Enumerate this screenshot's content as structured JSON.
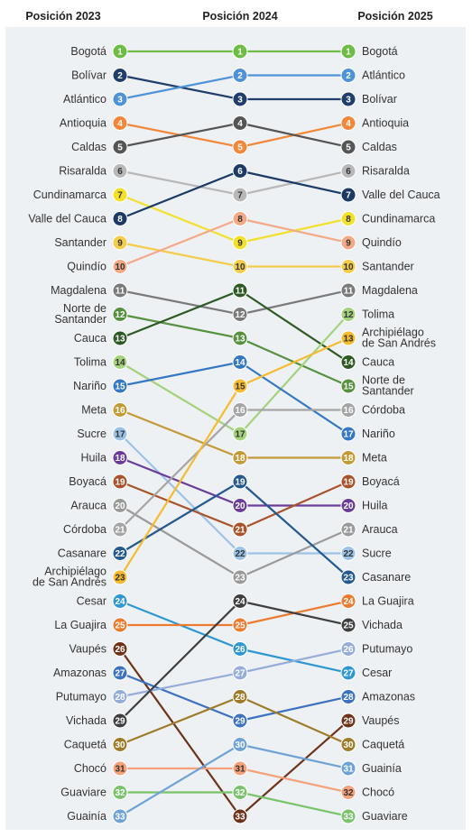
{
  "chart_data": {
    "type": "slope",
    "headers": [
      "Posición 2023",
      "Posición 2024",
      "Posición 2025"
    ],
    "y_axis": "rank",
    "ylim": [
      1,
      33
    ],
    "series": [
      {
        "name": "Bogotá",
        "ranks": [
          1,
          1,
          1
        ],
        "label_2023": [
          "Bogotá"
        ],
        "label_2025": [
          "Bogotá"
        ],
        "color": "#6dbd45"
      },
      {
        "name": "Bolívar",
        "ranks": [
          2,
          3,
          3
        ],
        "label_2023": [
          "Bolívar"
        ],
        "label_2025": [
          "Bolívar"
        ],
        "color": "#1f3e6b"
      },
      {
        "name": "Atlántico",
        "ranks": [
          3,
          2,
          2
        ],
        "label_2023": [
          "Atlántico"
        ],
        "label_2025": [
          "Atlántico"
        ],
        "color": "#4e92d8"
      },
      {
        "name": "Antioquia",
        "ranks": [
          4,
          5,
          4
        ],
        "label_2023": [
          "Antioquia"
        ],
        "label_2025": [
          "Antioquia"
        ],
        "color": "#f2873a"
      },
      {
        "name": "Caldas",
        "ranks": [
          5,
          4,
          5
        ],
        "label_2023": [
          "Caldas"
        ],
        "label_2025": [
          "Caldas"
        ],
        "color": "#555555"
      },
      {
        "name": "Risaralda",
        "ranks": [
          6,
          7,
          6
        ],
        "label_2023": [
          "Risaralda"
        ],
        "label_2025": [
          "Risaralda"
        ],
        "color": "#b8b8b8"
      },
      {
        "name": "Cundinamarca",
        "ranks": [
          7,
          9,
          8
        ],
        "label_2023": [
          "Cundinamarca"
        ],
        "label_2025": [
          "Cundinamarca"
        ],
        "color": "#f2e02a"
      },
      {
        "name": "Valle del Cauca",
        "ranks": [
          8,
          6,
          7
        ],
        "label_2023": [
          "Valle del Cauca"
        ],
        "label_2025": [
          "Valle del Cauca"
        ],
        "color": "#1c3a66"
      },
      {
        "name": "Santander",
        "ranks": [
          9,
          10,
          10
        ],
        "label_2023": [
          "Santander"
        ],
        "label_2025": [
          "Santander"
        ],
        "color": "#f3cc4a"
      },
      {
        "name": "Quindío",
        "ranks": [
          10,
          8,
          9
        ],
        "label_2023": [
          "Quindío"
        ],
        "label_2025": [
          "Quindío"
        ],
        "color": "#f4a986"
      },
      {
        "name": "Magdalena",
        "ranks": [
          11,
          12,
          11
        ],
        "label_2023": [
          "Magdalena"
        ],
        "label_2025": [
          "Magdalena"
        ],
        "color": "#7a7a7a"
      },
      {
        "name": "Norte de Santander",
        "ranks": [
          12,
          13,
          15
        ],
        "label_2023": [
          "Norte de",
          "Santander"
        ],
        "label_2025": [
          "Norte de",
          "Santander"
        ],
        "color": "#56913f"
      },
      {
        "name": "Cauca",
        "ranks": [
          13,
          11,
          14
        ],
        "label_2023": [
          "Cauca"
        ],
        "label_2025": [
          "Cauca"
        ],
        "color": "#2d5a22"
      },
      {
        "name": "Tolima",
        "ranks": [
          14,
          17,
          12
        ],
        "label_2023": [
          "Tolima"
        ],
        "label_2025": [
          "Tolima"
        ],
        "color": "#a4d27d"
      },
      {
        "name": "Nariño",
        "ranks": [
          15,
          14,
          17
        ],
        "label_2023": [
          "Nariño"
        ],
        "label_2025": [
          "Nariño"
        ],
        "color": "#3477c4"
      },
      {
        "name": "Meta",
        "ranks": [
          16,
          18,
          18
        ],
        "label_2023": [
          "Meta"
        ],
        "label_2025": [
          "Meta"
        ],
        "color": "#c39a35"
      },
      {
        "name": "Sucre",
        "ranks": [
          17,
          22,
          22
        ],
        "label_2023": [
          "Sucre"
        ],
        "label_2025": [
          "Sucre"
        ],
        "color": "#9cc3e6"
      },
      {
        "name": "Huila",
        "ranks": [
          18,
          20,
          20
        ],
        "label_2023": [
          "Huila"
        ],
        "label_2025": [
          "Huila"
        ],
        "color": "#6a3d9a"
      },
      {
        "name": "Boyacá",
        "ranks": [
          19,
          21,
          19
        ],
        "label_2023": [
          "Boyacá"
        ],
        "label_2025": [
          "Boyacá"
        ],
        "color": "#a9532b"
      },
      {
        "name": "Arauca",
        "ranks": [
          20,
          23,
          21
        ],
        "label_2023": [
          "Arauca"
        ],
        "label_2025": [
          "Arauca"
        ],
        "color": "#9a9a9a"
      },
      {
        "name": "Córdoba",
        "ranks": [
          21,
          16,
          16
        ],
        "label_2023": [
          "Córdoba"
        ],
        "label_2025": [
          "Córdoba"
        ],
        "color": "#a5a5a5"
      },
      {
        "name": "Casanare",
        "ranks": [
          22,
          19,
          23
        ],
        "label_2023": [
          "Casanare"
        ],
        "label_2025": [
          "Casanare"
        ],
        "color": "#245a8f"
      },
      {
        "name": "Archipiélago de San Andrés",
        "ranks": [
          23,
          15,
          13
        ],
        "label_2023": [
          "Archipiélago",
          "de San Andrés"
        ],
        "label_2025": [
          "Archipiélago",
          "de San Andrés"
        ],
        "color": "#f6bb2e"
      },
      {
        "name": "Cesar",
        "ranks": [
          24,
          26,
          27
        ],
        "label_2023": [
          "Cesar"
        ],
        "label_2025": [
          "Cesar"
        ],
        "color": "#2f97d1"
      },
      {
        "name": "La Guajira",
        "ranks": [
          25,
          25,
          24
        ],
        "label_2023": [
          "La Guajira"
        ],
        "label_2025": [
          "La Guajira"
        ],
        "color": "#ec7a2f"
      },
      {
        "name": "Vaupés",
        "ranks": [
          26,
          33,
          29
        ],
        "label_2023": [
          "Vaupés"
        ],
        "label_2025": [
          "Vaupés"
        ],
        "color": "#6e3219"
      },
      {
        "name": "Amazonas",
        "ranks": [
          27,
          29,
          28
        ],
        "label_2023": [
          "Amazonas"
        ],
        "label_2025": [
          "Amazonas"
        ],
        "color": "#3d72c0"
      },
      {
        "name": "Putumayo",
        "ranks": [
          28,
          27,
          26
        ],
        "label_2023": [
          "Putumayo"
        ],
        "label_2025": [
          "Putumayo"
        ],
        "color": "#95aed9"
      },
      {
        "name": "Vichada",
        "ranks": [
          29,
          24,
          25
        ],
        "label_2023": [
          "Vichada"
        ],
        "label_2025": [
          "Vichada"
        ],
        "color": "#3f3f3f"
      },
      {
        "name": "Caquetá",
        "ranks": [
          30,
          28,
          30
        ],
        "label_2023": [
          "Caquetá"
        ],
        "label_2025": [
          "Caquetá"
        ],
        "color": "#9e7c2a"
      },
      {
        "name": "Chocó",
        "ranks": [
          31,
          31,
          32
        ],
        "label_2023": [
          "Chocó"
        ],
        "label_2025": [
          "Chocó"
        ],
        "color": "#f5a17a"
      },
      {
        "name": "Guaviare",
        "ranks": [
          32,
          32,
          33
        ],
        "label_2023": [
          "Guaviare"
        ],
        "label_2025": [
          "Guaviare"
        ],
        "color": "#79c36a"
      },
      {
        "name": "Guainía",
        "ranks": [
          33,
          30,
          31
        ],
        "label_2023": [
          "Guainía"
        ],
        "label_2025": [
          "Guainía"
        ],
        "color": "#6fa3d6"
      }
    ]
  }
}
